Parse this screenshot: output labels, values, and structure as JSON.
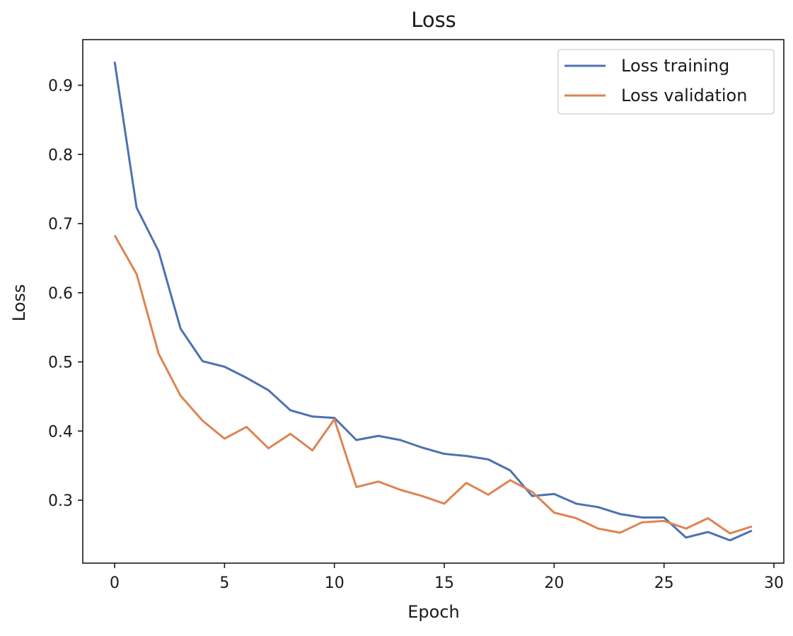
{
  "chart_data": {
    "type": "line",
    "title": "Loss",
    "xlabel": "Epoch",
    "ylabel": "Loss",
    "xlim": [
      -1.45,
      30.45
    ],
    "ylim": [
      0.209,
      0.966
    ],
    "xticks": [
      0,
      5,
      10,
      15,
      20,
      25,
      30
    ],
    "yticks": [
      0.3,
      0.4,
      0.5,
      0.6,
      0.7,
      0.8,
      0.9
    ],
    "x": [
      0,
      1,
      2,
      3,
      4,
      5,
      6,
      7,
      8,
      9,
      10,
      11,
      12,
      13,
      14,
      15,
      16,
      17,
      18,
      19,
      20,
      21,
      22,
      23,
      24,
      25,
      26,
      27,
      28,
      29
    ],
    "series": [
      {
        "name": "Loss training",
        "color": "#4c72b0",
        "values": [
          0.934,
          0.723,
          0.66,
          0.548,
          0.501,
          0.493,
          0.477,
          0.459,
          0.43,
          0.421,
          0.419,
          0.387,
          0.393,
          0.387,
          0.376,
          0.367,
          0.364,
          0.359,
          0.343,
          0.306,
          0.309,
          0.295,
          0.29,
          0.28,
          0.275,
          0.275,
          0.246,
          0.254,
          0.242,
          0.256
        ]
      },
      {
        "name": "Loss validation",
        "color": "#dd8452",
        "values": [
          0.683,
          0.627,
          0.512,
          0.451,
          0.415,
          0.389,
          0.406,
          0.375,
          0.396,
          0.372,
          0.417,
          0.319,
          0.327,
          0.315,
          0.306,
          0.295,
          0.325,
          0.308,
          0.329,
          0.312,
          0.282,
          0.274,
          0.259,
          0.253,
          0.268,
          0.27,
          0.259,
          0.274,
          0.252,
          0.262
        ]
      }
    ],
    "grid": false,
    "legend_position": "top-right"
  }
}
